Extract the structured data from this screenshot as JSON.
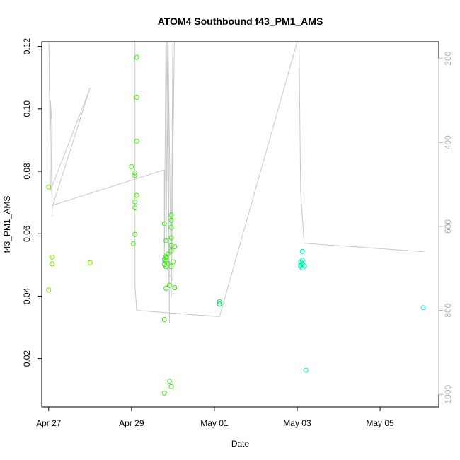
{
  "chart_data": {
    "type": "scatter",
    "title": "ATOM4 Southbound f43_PM1_AMS",
    "xlabel": "Date",
    "ylabel": "f43_PM1_AMS",
    "xlim": [
      "2023-04-26T20:00",
      "2023-05-06T10:00"
    ],
    "ylim": [
      0.0045,
      0.1215
    ],
    "x_ticks": [
      {
        "date": "2023-04-27T00:00",
        "label": "Apr 27"
      },
      {
        "date": "2023-04-29T00:00",
        "label": "Apr 29"
      },
      {
        "date": "2023-05-01T00:00",
        "label": "May 01"
      },
      {
        "date": "2023-05-03T00:00",
        "label": "May 03"
      },
      {
        "date": "2023-05-05T00:00",
        "label": "May 05"
      }
    ],
    "y_ticks": [
      {
        "value": 0.02,
        "label": "0.02"
      },
      {
        "value": 0.04,
        "label": "0.04"
      },
      {
        "value": 0.06,
        "label": "0.06"
      },
      {
        "value": 0.08,
        "label": "0.08"
      },
      {
        "value": 0.1,
        "label": "0.10"
      },
      {
        "value": 0.12,
        "label": "0.12"
      }
    ],
    "right_axis": {
      "ylim": [
        1030,
        160
      ],
      "reversed": true,
      "color": "#b0b0b0",
      "ticks": [
        {
          "value": 200,
          "label": "200"
        },
        {
          "value": 400,
          "label": "400"
        },
        {
          "value": 600,
          "label": "600"
        },
        {
          "value": 800,
          "label": "800"
        },
        {
          "value": 1000,
          "label": "1000"
        }
      ]
    },
    "grid": false,
    "series": [
      {
        "marker": "open-circle",
        "color_scale": "time (green to cyan)",
        "points": [
          {
            "x": "2023-04-27T00:00",
            "y": 0.075,
            "color": "#7de600"
          },
          {
            "x": "2023-04-27T00:00",
            "y": 0.042,
            "color": "#7de600"
          },
          {
            "x": "2023-04-27T02:00",
            "y": 0.0525,
            "color": "#7de600"
          },
          {
            "x": "2023-04-27T02:00",
            "y": 0.0503,
            "color": "#7de600"
          },
          {
            "x": "2023-04-28T00:00",
            "y": 0.0507,
            "color": "#6ee800"
          },
          {
            "x": "2023-04-29T03:00",
            "y": 0.1165,
            "color": "#44ee00"
          },
          {
            "x": "2023-04-29T03:00",
            "y": 0.1037,
            "color": "#44ee00"
          },
          {
            "x": "2023-04-29T03:00",
            "y": 0.0897,
            "color": "#44ee00"
          },
          {
            "x": "2023-04-29T00:00",
            "y": 0.0815,
            "color": "#44ee00"
          },
          {
            "x": "2023-04-29T02:00",
            "y": 0.0795,
            "color": "#44ee00"
          },
          {
            "x": "2023-04-29T02:00",
            "y": 0.0787,
            "color": "#44ee00"
          },
          {
            "x": "2023-04-29T03:00",
            "y": 0.0723,
            "color": "#44ee00"
          },
          {
            "x": "2023-04-29T02:00",
            "y": 0.0702,
            "color": "#44ee00"
          },
          {
            "x": "2023-04-29T02:00",
            "y": 0.0683,
            "color": "#44ee00"
          },
          {
            "x": "2023-04-29T02:00",
            "y": 0.0598,
            "color": "#44ee00"
          },
          {
            "x": "2023-04-29T01:00",
            "y": 0.0568,
            "color": "#44ee00"
          },
          {
            "x": "2023-04-29T19:00",
            "y": 0.0632,
            "color": "#30f000"
          },
          {
            "x": "2023-04-29T23:00",
            "y": 0.066,
            "color": "#30f000"
          },
          {
            "x": "2023-04-29T23:00",
            "y": 0.0643,
            "color": "#30f000"
          },
          {
            "x": "2023-04-29T23:00",
            "y": 0.062,
            "color": "#30f000"
          },
          {
            "x": "2023-04-29T23:00",
            "y": 0.0587,
            "color": "#30f000"
          },
          {
            "x": "2023-04-29T20:00",
            "y": 0.0577,
            "color": "#30f000"
          },
          {
            "x": "2023-04-29T23:00",
            "y": 0.0562,
            "color": "#30f000"
          },
          {
            "x": "2023-04-30T01:00",
            "y": 0.0558,
            "color": "#30f000"
          },
          {
            "x": "2023-04-29T23:00",
            "y": 0.0545,
            "color": "#30f000"
          },
          {
            "x": "2023-04-29T21:00",
            "y": 0.0535,
            "color": "#30f000"
          },
          {
            "x": "2023-04-29T20:00",
            "y": 0.0527,
            "color": "#30f000"
          },
          {
            "x": "2023-04-29T20:00",
            "y": 0.0522,
            "color": "#30f000"
          },
          {
            "x": "2023-04-29T19:00",
            "y": 0.0517,
            "color": "#30f000"
          },
          {
            "x": "2023-04-29T20:00",
            "y": 0.0512,
            "color": "#30f000"
          },
          {
            "x": "2023-04-30T00:00",
            "y": 0.051,
            "color": "#30f000"
          },
          {
            "x": "2023-04-29T21:00",
            "y": 0.0505,
            "color": "#30f000"
          },
          {
            "x": "2023-04-29T19:00",
            "y": 0.0502,
            "color": "#30f000"
          },
          {
            "x": "2023-04-29T20:00",
            "y": 0.0495,
            "color": "#30f000"
          },
          {
            "x": "2023-04-29T23:00",
            "y": 0.0495,
            "color": "#30f000"
          },
          {
            "x": "2023-04-29T22:00",
            "y": 0.0435,
            "color": "#30f000"
          },
          {
            "x": "2023-04-29T20:00",
            "y": 0.0425,
            "color": "#30f000"
          },
          {
            "x": "2023-04-30T01:00",
            "y": 0.0427,
            "color": "#30f000"
          },
          {
            "x": "2023-04-29T19:00",
            "y": 0.0325,
            "color": "#30f000"
          },
          {
            "x": "2023-04-29T22:00",
            "y": 0.0127,
            "color": "#30f000"
          },
          {
            "x": "2023-04-29T23:00",
            "y": 0.011,
            "color": "#30f000"
          },
          {
            "x": "2023-04-29T19:00",
            "y": 0.009,
            "color": "#30f000"
          },
          {
            "x": "2023-05-01T03:00",
            "y": 0.0382,
            "color": "#00f060"
          },
          {
            "x": "2023-05-01T03:00",
            "y": 0.0375,
            "color": "#00f060"
          },
          {
            "x": "2023-05-03T03:00",
            "y": 0.0543,
            "color": "#00f5b0"
          },
          {
            "x": "2023-05-03T03:00",
            "y": 0.0515,
            "color": "#00f5b0"
          },
          {
            "x": "2023-05-03T02:00",
            "y": 0.051,
            "color": "#00f5b0"
          },
          {
            "x": "2023-05-03T03:00",
            "y": 0.0505,
            "color": "#00f5b0"
          },
          {
            "x": "2023-05-03T02:00",
            "y": 0.05,
            "color": "#00f5b0"
          },
          {
            "x": "2023-05-03T04:00",
            "y": 0.0497,
            "color": "#00f5b0"
          },
          {
            "x": "2023-05-03T02:00",
            "y": 0.0495,
            "color": "#00f5b0"
          },
          {
            "x": "2023-05-03T03:00",
            "y": 0.049,
            "color": "#00f5b0"
          },
          {
            "x": "2023-05-03T05:00",
            "y": 0.0163,
            "color": "#00f5b0"
          },
          {
            "x": "2023-05-06T01:00",
            "y": 0.0363,
            "color": "#00f0e8"
          }
        ]
      },
      {
        "line": true,
        "axis": "right",
        "color": "#c8c8c8",
        "points": [
          {
            "x": "2023-04-27T00:00",
            "y": 100
          },
          {
            "x": "2023-04-27T01:00",
            "y": 515
          },
          {
            "x": "2023-04-28T00:00",
            "y": 270
          },
          {
            "x": "2023-04-27T02:00",
            "y": 555
          },
          {
            "x": "2023-04-27T01:00",
            "y": 300
          },
          {
            "x": "2023-04-27T02:00",
            "y": 360
          },
          {
            "x": "2023-04-27T02:00",
            "y": 575
          },
          {
            "x": "2023-04-27T02:00",
            "y": 550
          },
          {
            "x": "2023-04-29T19:00",
            "y": 465
          },
          {
            "x": "2023-04-29T19:00",
            "y": 700
          },
          {
            "x": "2023-04-29T20:00",
            "y": 100
          },
          {
            "x": "2023-04-29T22:00",
            "y": 830
          },
          {
            "x": "2023-04-29T21:00",
            "y": 100
          },
          {
            "x": "2023-04-29T20:00",
            "y": 690
          },
          {
            "x": "2023-04-29T22:00",
            "y": 715
          },
          {
            "x": "2023-04-30T00:00",
            "y": 730
          },
          {
            "x": "2023-04-30T00:00",
            "y": 100
          },
          {
            "x": "2023-04-29T23:00",
            "y": 770
          },
          {
            "x": "2023-04-30T01:00",
            "y": 100
          },
          {
            "x": "2023-04-29T23:00",
            "y": 730
          },
          {
            "x": "2023-04-29T21:00",
            "y": 100
          },
          {
            "x": "2023-04-29T19:00",
            "y": 100
          },
          {
            "x": "2023-04-29T02:00",
            "y": 100
          },
          {
            "x": "2023-04-29T02:00",
            "y": 740
          },
          {
            "x": "2023-04-29T03:00",
            "y": 800
          },
          {
            "x": "2023-05-01T03:00",
            "y": 815
          },
          {
            "x": "2023-05-03T00:00",
            "y": 160
          },
          {
            "x": "2023-05-03T01:00",
            "y": 140
          },
          {
            "x": "2023-05-03T02:00",
            "y": 520
          },
          {
            "x": "2023-05-03T04:00",
            "y": 640
          },
          {
            "x": "2023-05-06T01:00",
            "y": 660
          }
        ]
      }
    ]
  }
}
